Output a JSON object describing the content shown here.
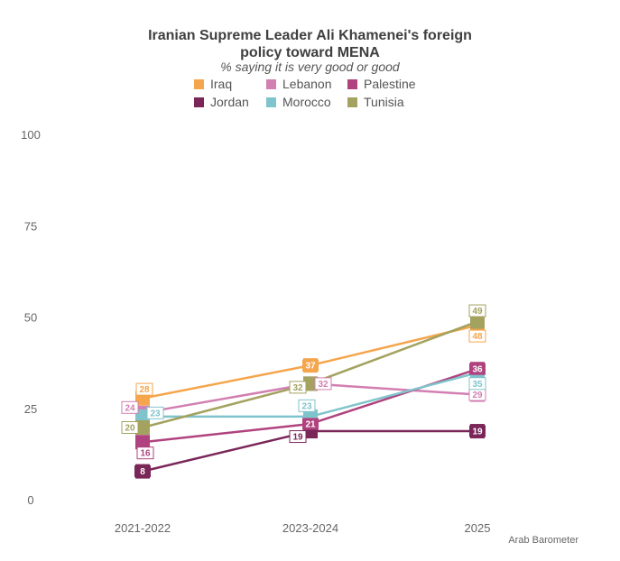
{
  "chart_data": {
    "type": "line",
    "title": "Iranian Supreme Leader Ali Khamenei's foreign\npolicy toward MENA",
    "subtitle": "% saying it is very good or good",
    "categories": [
      "2021-2022",
      "2023-2024",
      "2025"
    ],
    "ylim": [
      0,
      100
    ],
    "yticks": [
      0,
      25,
      50,
      75,
      100
    ],
    "grid": false,
    "legend_position": "top-center",
    "series": [
      {
        "name": "Iraq",
        "color": "#f5a54c",
        "values": [
          28,
          37,
          48
        ]
      },
      {
        "name": "Lebanon",
        "color": "#d27fb1",
        "values": [
          24,
          32,
          29
        ]
      },
      {
        "name": "Palestine",
        "color": "#b0437f",
        "values": [
          16,
          21,
          36
        ]
      },
      {
        "name": "Jordan",
        "color": "#7a2659",
        "values": [
          8,
          19,
          19
        ]
      },
      {
        "name": "Morocco",
        "color": "#7fc4cc",
        "values": [
          23,
          23,
          35
        ]
      },
      {
        "name": "Tunisia",
        "color": "#a3a25f",
        "values": [
          20,
          32,
          49
        ]
      }
    ],
    "source": "Arab Barometer"
  }
}
